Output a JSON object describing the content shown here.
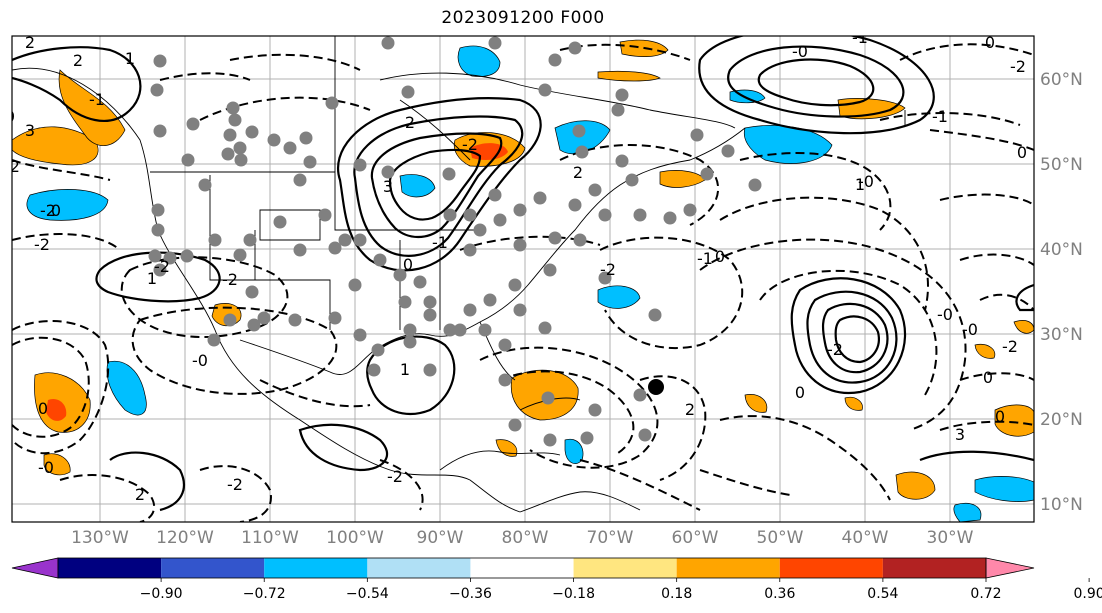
{
  "title": "2023091200 F000",
  "map": {
    "lon_ticks": [
      "130°W",
      "120°W",
      "110°W",
      "100°W",
      "90°W",
      "80°W",
      "70°W",
      "60°W",
      "50°W",
      "40°W",
      "30°W"
    ],
    "lat_ticks": [
      "60°N",
      "50°N",
      "40°N",
      "30°N",
      "20°N",
      "10°N"
    ]
  },
  "colorbar": {
    "colors": [
      "#9933cc",
      "#000080",
      "#3355cc",
      "#00bfff",
      "#b0e0f5",
      "#ffffff",
      "#ffe680",
      "#ffa500",
      "#ff4500",
      "#b22222",
      "#ff88aa"
    ],
    "tick_labels": [
      "−0.90",
      "−0.72",
      "−0.54",
      "−0.36",
      "−0.18",
      "0.18",
      "0.36",
      "0.54",
      "0.72",
      "0.90"
    ]
  },
  "contour_labels": [
    "2",
    "0",
    "-2",
    "-1",
    "3",
    "1",
    "2",
    "-2",
    "0",
    "-2",
    "1",
    "-2",
    "3",
    "2",
    "0",
    "-1",
    "-2",
    "2",
    "-2",
    "0",
    "-1",
    "-0",
    "-1",
    "0",
    "-2",
    "-1",
    "0",
    "1",
    "-0",
    "-0",
    "-2",
    "0",
    "-0",
    "-2",
    "2",
    "0",
    "3",
    "0",
    "-2",
    "2",
    "1",
    "-2",
    "0",
    "-0",
    "-0",
    "-2"
  ],
  "markers": {
    "large_dot": "black-dot"
  }
}
